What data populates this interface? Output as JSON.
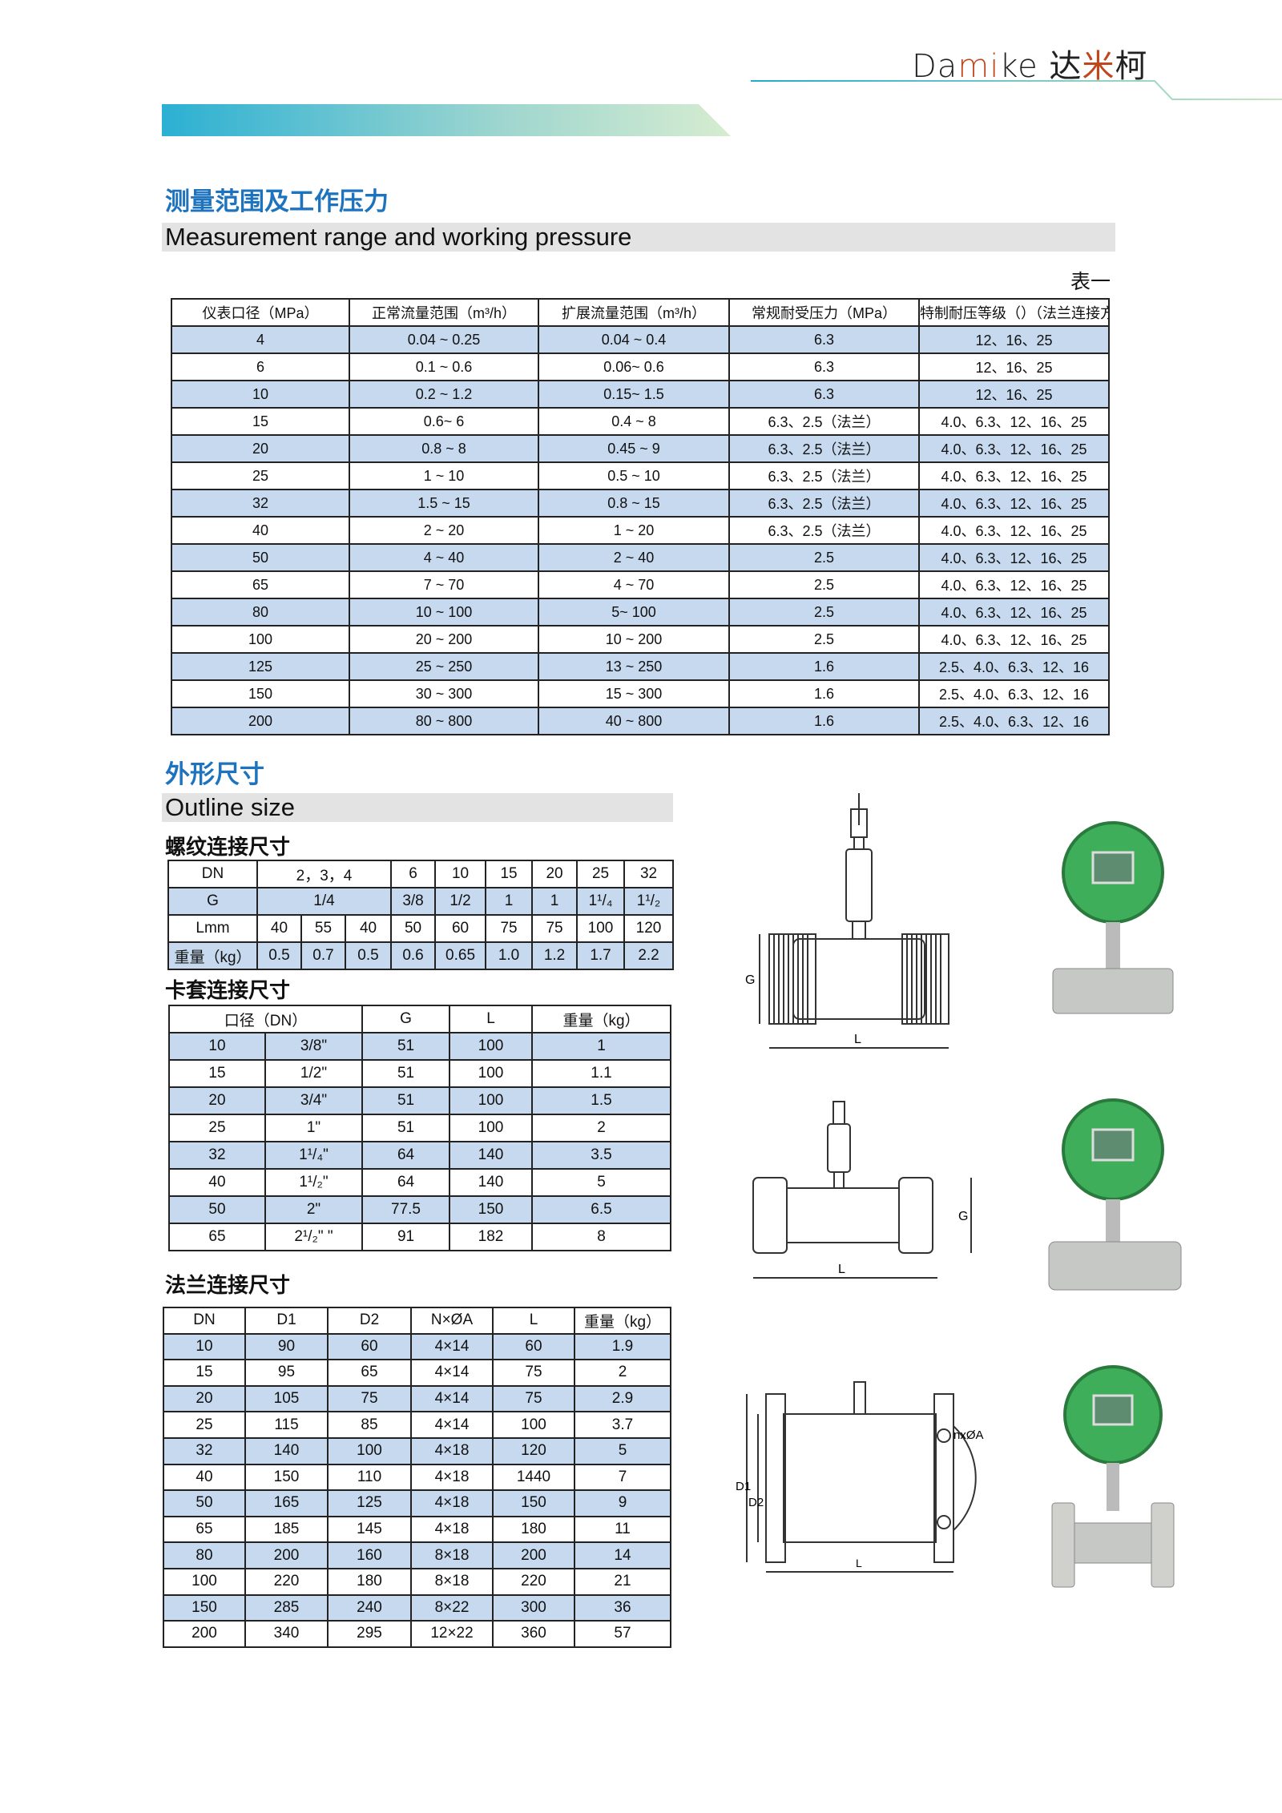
{
  "brand": {
    "latin_a": "Da",
    "latin_b": "mi",
    "latin_c": "ke",
    "cn_a": "达",
    "cn_b": "米",
    "cn_c": "柯",
    "accent": "#c0461c"
  },
  "section1": {
    "title_cn": "测量范围及工作压力",
    "title_en": "Measurement range and working pressure",
    "table_label": "表一"
  },
  "table1": {
    "headers": [
      "仪表口径（MPa）",
      "正常流量范围（m³/h）",
      "扩展流量范围（m³/h）",
      "常规耐受压力（MPa）",
      "特制耐压等级（）（法兰连接方式）"
    ],
    "rows": [
      [
        "4",
        "0.04 ~ 0.25",
        "0.04 ~ 0.4",
        "6.3",
        "12、16、25"
      ],
      [
        "6",
        "0.1 ~ 0.6",
        "0.06~ 0.6",
        "6.3",
        "12、16、25"
      ],
      [
        "10",
        "0.2 ~ 1.2",
        "0.15~ 1.5",
        "6.3",
        "12、16、25"
      ],
      [
        "15",
        "0.6~   6",
        "0.4 ~ 8",
        "6.3、2.5（法兰）",
        "4.0、6.3、12、16、25"
      ],
      [
        "20",
        "0.8 ~ 8",
        "0.45 ~ 9",
        "6.3、2.5（法兰）",
        "4.0、6.3、12、16、25"
      ],
      [
        "25",
        "1 ~ 10",
        "0.5 ~ 10",
        "6.3、2.5（法兰）",
        "4.0、6.3、12、16、25"
      ],
      [
        "32",
        "1.5 ~ 15",
        "0.8 ~ 15",
        "6.3、2.5（法兰）",
        "4.0、6.3、12、16、25"
      ],
      [
        "40",
        "2 ~ 20",
        "1 ~ 20",
        "6.3、2.5（法兰）",
        "4.0、6.3、12、16、25"
      ],
      [
        "50",
        "4 ~ 40",
        "2 ~ 40",
        "2.5",
        "4.0、6.3、12、16、25"
      ],
      [
        "65",
        "7 ~ 70",
        "4 ~ 70",
        "2.5",
        "4.0、6.3、12、16、25"
      ],
      [
        "80",
        "10 ~ 100",
        "5~ 100",
        "2.5",
        "4.0、6.3、12、16、25"
      ],
      [
        "100",
        "20 ~ 200",
        "10 ~ 200",
        "2.5",
        "4.0、6.3、12、16、25"
      ],
      [
        "125",
        "25 ~ 250",
        "13 ~ 250",
        "1.6",
        "2.5、4.0、6.3、12、16"
      ],
      [
        "150",
        "30 ~ 300",
        "15 ~ 300",
        "1.6",
        "2.5、4.0、6.3、12、16"
      ],
      [
        "200",
        "80 ~ 800",
        "40 ~ 800",
        "1.6",
        "2.5、4.0、6.3、12、16"
      ]
    ]
  },
  "section2": {
    "title_cn": "外形尺寸",
    "title_en": "Outline size",
    "thread_title": "螺纹连接尺寸",
    "ferrule_title": "卡套连接尺寸",
    "flange_title": "法兰连接尺寸"
  },
  "table2": {
    "rows": [
      [
        {
          "v": "DN"
        },
        {
          "v": "2，3，4",
          "span": 3
        },
        {
          "v": "6"
        },
        {
          "v": "10"
        },
        {
          "v": "15"
        },
        {
          "v": "20"
        },
        {
          "v": "25"
        },
        {
          "v": "32"
        }
      ],
      [
        {
          "v": "G"
        },
        {
          "v": "1/4",
          "span": 3
        },
        {
          "v": "3/8"
        },
        {
          "v": "1/2"
        },
        {
          "v": "1"
        },
        {
          "v": "1"
        },
        {
          "v": "1¹/₄"
        },
        {
          "v": "1¹/₂"
        }
      ],
      [
        {
          "v": "Lmm"
        },
        {
          "v": "40"
        },
        {
          "v": "55"
        },
        {
          "v": "40"
        },
        {
          "v": "50"
        },
        {
          "v": "60"
        },
        {
          "v": "75"
        },
        {
          "v": "75"
        },
        {
          "v": "100"
        },
        {
          "v": "120"
        }
      ],
      [
        {
          "v": "重量（kg）"
        },
        {
          "v": "0.5"
        },
        {
          "v": "0.7"
        },
        {
          "v": "0.5"
        },
        {
          "v": "0.6"
        },
        {
          "v": "0.65"
        },
        {
          "v": "1.0"
        },
        {
          "v": "1.2"
        },
        {
          "v": "1.7"
        },
        {
          "v": "2.2"
        }
      ]
    ]
  },
  "table3": {
    "rows": [
      [
        {
          "v": "口径（DN）",
          "span": 2
        },
        {
          "v": "G"
        },
        {
          "v": "L"
        },
        {
          "v": "重量（kg）"
        }
      ],
      [
        {
          "v": "10"
        },
        {
          "v": "3/8\""
        },
        {
          "v": "51"
        },
        {
          "v": "100"
        },
        {
          "v": "1"
        }
      ],
      [
        {
          "v": "15"
        },
        {
          "v": "1/2\""
        },
        {
          "v": "51"
        },
        {
          "v": "100"
        },
        {
          "v": "1.1"
        }
      ],
      [
        {
          "v": "20"
        },
        {
          "v": "3/4\""
        },
        {
          "v": "51"
        },
        {
          "v": "100"
        },
        {
          "v": "1.5"
        }
      ],
      [
        {
          "v": "25"
        },
        {
          "v": "1\""
        },
        {
          "v": "51"
        },
        {
          "v": "100"
        },
        {
          "v": "2"
        }
      ],
      [
        {
          "v": "32"
        },
        {
          "v": "1¹/₄\""
        },
        {
          "v": "64"
        },
        {
          "v": "140"
        },
        {
          "v": "3.5"
        }
      ],
      [
        {
          "v": "40"
        },
        {
          "v": "1¹/₂\""
        },
        {
          "v": "64"
        },
        {
          "v": "140"
        },
        {
          "v": "5"
        }
      ],
      [
        {
          "v": "50"
        },
        {
          "v": "2\""
        },
        {
          "v": "77.5"
        },
        {
          "v": "150"
        },
        {
          "v": "6.5"
        }
      ],
      [
        {
          "v": "65"
        },
        {
          "v": "2¹/₂\" \""
        },
        {
          "v": "91"
        },
        {
          "v": "182"
        },
        {
          "v": "8"
        }
      ]
    ]
  },
  "table4": {
    "rows": [
      [
        {
          "v": "DN"
        },
        {
          "v": "D1"
        },
        {
          "v": "D2"
        },
        {
          "v": "N×ØA"
        },
        {
          "v": "L"
        },
        {
          "v": "重量（kg）"
        }
      ],
      [
        {
          "v": "10"
        },
        {
          "v": "90"
        },
        {
          "v": "60"
        },
        {
          "v": "4×14"
        },
        {
          "v": "60"
        },
        {
          "v": "1.9"
        }
      ],
      [
        {
          "v": "15"
        },
        {
          "v": "95"
        },
        {
          "v": "65"
        },
        {
          "v": "4×14"
        },
        {
          "v": "75"
        },
        {
          "v": "2"
        }
      ],
      [
        {
          "v": "20"
        },
        {
          "v": "105"
        },
        {
          "v": "75"
        },
        {
          "v": "4×14"
        },
        {
          "v": "75"
        },
        {
          "v": "2.9"
        }
      ],
      [
        {
          "v": "25"
        },
        {
          "v": "115"
        },
        {
          "v": "85"
        },
        {
          "v": "4×14"
        },
        {
          "v": "100"
        },
        {
          "v": "3.7"
        }
      ],
      [
        {
          "v": "32"
        },
        {
          "v": "140"
        },
        {
          "v": "100"
        },
        {
          "v": "4×18"
        },
        {
          "v": "120"
        },
        {
          "v": "5"
        }
      ],
      [
        {
          "v": "40"
        },
        {
          "v": "150"
        },
        {
          "v": "110"
        },
        {
          "v": "4×18"
        },
        {
          "v": "1440"
        },
        {
          "v": "7"
        }
      ],
      [
        {
          "v": "50"
        },
        {
          "v": "165"
        },
        {
          "v": "125"
        },
        {
          "v": "4×18"
        },
        {
          "v": "150"
        },
        {
          "v": "9"
        }
      ],
      [
        {
          "v": "65"
        },
        {
          "v": "185"
        },
        {
          "v": "145"
        },
        {
          "v": "4×18"
        },
        {
          "v": "180"
        },
        {
          "v": "11"
        }
      ],
      [
        {
          "v": "80"
        },
        {
          "v": "200"
        },
        {
          "v": "160"
        },
        {
          "v": "8×18"
        },
        {
          "v": "200"
        },
        {
          "v": "14"
        }
      ],
      [
        {
          "v": "100"
        },
        {
          "v": "220"
        },
        {
          "v": "180"
        },
        {
          "v": "8×18"
        },
        {
          "v": "220"
        },
        {
          "v": "21"
        }
      ],
      [
        {
          "v": "150"
        },
        {
          "v": "285"
        },
        {
          "v": "240"
        },
        {
          "v": "8×22"
        },
        {
          "v": "300"
        },
        {
          "v": "36"
        }
      ],
      [
        {
          "v": "200"
        },
        {
          "v": "340"
        },
        {
          "v": "295"
        },
        {
          "v": "12×22"
        },
        {
          "v": "360"
        },
        {
          "v": "57"
        }
      ]
    ]
  },
  "diagrams": {
    "thread": {
      "g": "G",
      "l": "L"
    },
    "ferrule": {
      "g": "G",
      "l": "L"
    },
    "flange": {
      "d1": "D1",
      "d2": "D2",
      "holes": "nxØA",
      "l": "L"
    }
  },
  "colors": {
    "heading": "#1e73be",
    "row_highlight": "#c6d9ee",
    "meter_housing": "#3fae5a"
  }
}
